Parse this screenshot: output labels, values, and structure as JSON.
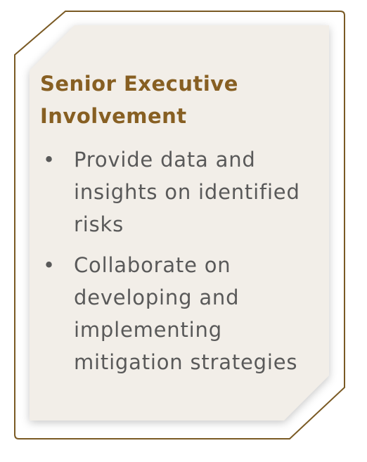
{
  "title_line1": "Senior Executive",
  "title_line2": "Involvement",
  "items": [
    {
      "text": "Provide data and insights on identified risks"
    },
    {
      "text": "Collaborate on developing and implementing mitigation strategies"
    }
  ],
  "colors": {
    "outline": "#7a5a24",
    "title": "#875f22",
    "card_fill": "#f2eee8",
    "body_text": "#595959"
  }
}
